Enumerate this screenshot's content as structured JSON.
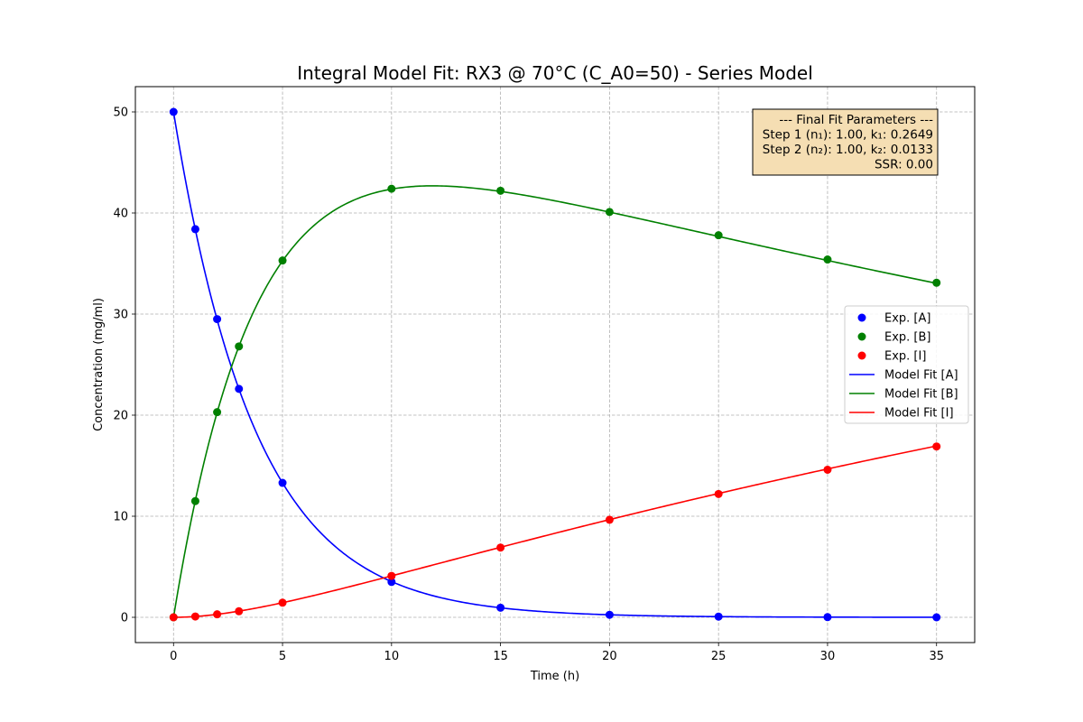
{
  "chart_data": {
    "type": "line",
    "title": "Integral Model Fit: RX3 @ 70°C (C_A0=50) - Series Model",
    "xlabel": "Time (h)",
    "ylabel": "Concentration (mg/ml)",
    "xlim": [
      -1.75,
      36.75
    ],
    "ylim": [
      -2.5,
      52.5
    ],
    "xticks": [
      0,
      5,
      10,
      15,
      20,
      25,
      30,
      35
    ],
    "yticks": [
      0,
      10,
      20,
      30,
      40,
      50
    ],
    "grid": true,
    "legend_position": "center-right",
    "annotation": {
      "lines": [
        "--- Final Fit Parameters ---",
        "Step 1 (n₁): 1.00, k₁: 0.2649",
        "Step 2 (n₂): 1.00, k₂: 0.0133",
        "SSR: 0.00"
      ],
      "background": "#f5deb3",
      "position": "top-right"
    },
    "model": {
      "C_A0": 50,
      "k1": 0.2649,
      "k2": 0.0133,
      "t_max": 35
    },
    "experimental": {
      "x": [
        0,
        1,
        2,
        3,
        5,
        10,
        15,
        20,
        25,
        30,
        35
      ],
      "series": [
        {
          "name": "Exp. [A]",
          "color": "#0000ff",
          "values": [
            50,
            38.4,
            29.5,
            22.6,
            13.3,
            3.5,
            0.95,
            0.25,
            0.07,
            0.02,
            0.0
          ]
        },
        {
          "name": "Exp. [B]",
          "color": "#008000",
          "values": [
            0,
            11.5,
            20.3,
            26.8,
            35.3,
            42.4,
            42.2,
            40.1,
            37.8,
            35.4,
            33.1
          ]
        },
        {
          "name": "Exp. [I]",
          "color": "#ff0000",
          "values": [
            0,
            0.08,
            0.3,
            0.6,
            1.45,
            4.1,
            6.9,
            9.65,
            12.2,
            14.6,
            16.9
          ]
        }
      ]
    },
    "fits": [
      {
        "name": "Model Fit [A]",
        "color": "#0000ff",
        "species": "A"
      },
      {
        "name": "Model Fit [B]",
        "color": "#008000",
        "species": "B"
      },
      {
        "name": "Model Fit [I]",
        "color": "#ff0000",
        "species": "I"
      }
    ]
  }
}
